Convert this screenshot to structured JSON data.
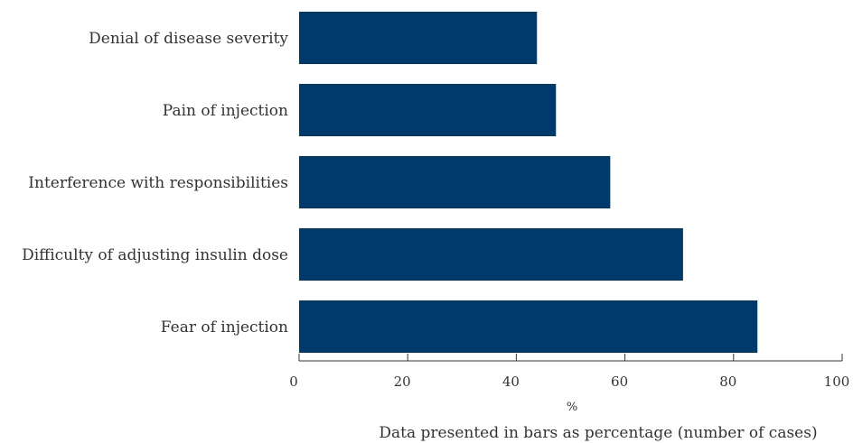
{
  "chart_data": {
    "type": "bar",
    "orientation": "horizontal",
    "categories": [
      "Denial of disease severity",
      "Pain of injection",
      "Interference with responsibilities",
      "Difficulty of adjusting insulin dose",
      "Fear of injection"
    ],
    "values": [
      43.8,
      47.3,
      57.3,
      70.7,
      84.4
    ],
    "xlim": [
      0,
      100
    ],
    "xticks": [
      "0",
      "20",
      "40",
      "60",
      "80",
      "100"
    ],
    "xlabel": "%",
    "note": "Data presented in bars  as percentage (number of cases)",
    "bar_color": "#003a6c",
    "grid": false,
    "legend": "none"
  }
}
